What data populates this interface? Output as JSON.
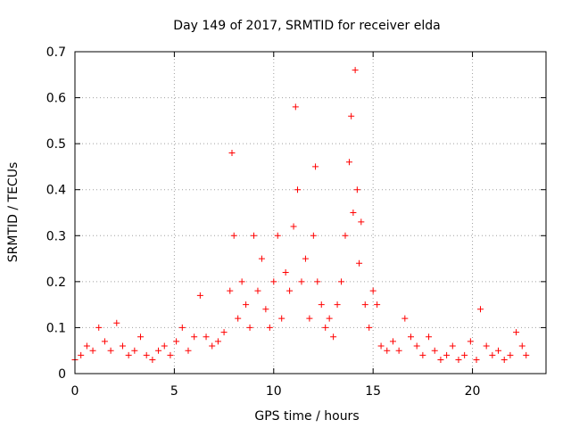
{
  "chart_data": {
    "type": "scatter",
    "title": "Day 149 of 2017, SRMTID for receiver elda",
    "xlabel": "GPS time / hours",
    "ylabel": "SRMTID / TECUs",
    "xlim": [
      0,
      23.7
    ],
    "ylim": [
      0,
      0.7
    ],
    "xticks": [
      0,
      5,
      10,
      15,
      20
    ],
    "yticks": [
      0,
      0.1,
      0.2,
      0.3,
      0.4,
      0.5,
      0.6,
      0.7
    ],
    "ytick_labels": [
      "0",
      "0.1",
      "0.2",
      "0.3",
      "0.4",
      "0.5",
      "0.6",
      "0.7"
    ],
    "grid": true,
    "marker": "+",
    "series": [
      {
        "name": "SRMTID",
        "color": "#ff0000",
        "x": [
          0.0,
          0.3,
          0.6,
          0.9,
          1.2,
          1.5,
          1.8,
          2.1,
          2.4,
          2.7,
          3.0,
          3.3,
          3.6,
          3.9,
          4.2,
          4.5,
          4.8,
          5.1,
          5.4,
          5.7,
          6.0,
          6.3,
          6.6,
          6.9,
          7.2,
          7.5,
          7.8,
          7.9,
          8.0,
          8.2,
          8.4,
          8.6,
          8.8,
          9.0,
          9.2,
          9.4,
          9.6,
          9.8,
          10.0,
          10.2,
          10.4,
          10.6,
          10.8,
          11.0,
          11.1,
          11.2,
          11.4,
          11.6,
          11.8,
          12.0,
          12.1,
          12.2,
          12.4,
          12.6,
          12.8,
          13.0,
          13.2,
          13.4,
          13.6,
          13.8,
          13.9,
          14.0,
          14.1,
          14.2,
          14.3,
          14.4,
          14.6,
          14.8,
          15.0,
          15.2,
          15.4,
          15.7,
          16.0,
          16.3,
          16.6,
          16.9,
          17.2,
          17.5,
          17.8,
          18.1,
          18.4,
          18.7,
          19.0,
          19.3,
          19.6,
          19.9,
          20.2,
          20.4,
          20.7,
          21.0,
          21.3,
          21.6,
          21.9,
          22.2,
          22.5,
          22.7
        ],
        "y": [
          0.03,
          0.04,
          0.06,
          0.05,
          0.1,
          0.07,
          0.05,
          0.11,
          0.06,
          0.04,
          0.05,
          0.08,
          0.04,
          0.03,
          0.05,
          0.06,
          0.04,
          0.07,
          0.1,
          0.05,
          0.08,
          0.17,
          0.08,
          0.06,
          0.07,
          0.09,
          0.18,
          0.48,
          0.3,
          0.12,
          0.2,
          0.15,
          0.1,
          0.3,
          0.18,
          0.25,
          0.14,
          0.1,
          0.2,
          0.3,
          0.12,
          0.22,
          0.18,
          0.32,
          0.58,
          0.4,
          0.2,
          0.25,
          0.12,
          0.3,
          0.45,
          0.2,
          0.15,
          0.1,
          0.12,
          0.08,
          0.15,
          0.2,
          0.3,
          0.46,
          0.56,
          0.35,
          0.66,
          0.4,
          0.24,
          0.33,
          0.15,
          0.1,
          0.18,
          0.15,
          0.06,
          0.05,
          0.07,
          0.05,
          0.12,
          0.08,
          0.06,
          0.04,
          0.08,
          0.05,
          0.03,
          0.04,
          0.06,
          0.03,
          0.04,
          0.07,
          0.03,
          0.14,
          0.06,
          0.04,
          0.05,
          0.03,
          0.04,
          0.09,
          0.06,
          0.04
        ]
      }
    ]
  }
}
